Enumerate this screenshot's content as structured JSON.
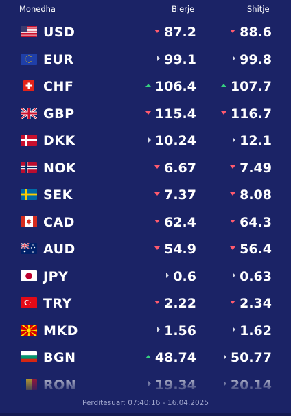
{
  "header": {
    "currency": "Monedha",
    "buy": "Blerje",
    "sell": "Shitje"
  },
  "rates": [
    {
      "code": "USD",
      "flag": "us-flag-icon",
      "buy": "87.2",
      "buy_trend": "down",
      "sell": "88.6",
      "sell_trend": "down"
    },
    {
      "code": "EUR",
      "flag": "eu-flag-icon",
      "buy": "99.1",
      "buy_trend": "flat",
      "sell": "99.8",
      "sell_trend": "flat"
    },
    {
      "code": "CHF",
      "flag": "ch-flag-icon",
      "buy": "106.4",
      "buy_trend": "up",
      "sell": "107.7",
      "sell_trend": "up"
    },
    {
      "code": "GBP",
      "flag": "gb-flag-icon",
      "buy": "115.4",
      "buy_trend": "down",
      "sell": "116.7",
      "sell_trend": "down"
    },
    {
      "code": "DKK",
      "flag": "dk-flag-icon",
      "buy": "10.24",
      "buy_trend": "flat",
      "sell": "12.1",
      "sell_trend": "flat"
    },
    {
      "code": "NOK",
      "flag": "no-flag-icon",
      "buy": "6.67",
      "buy_trend": "down",
      "sell": "7.49",
      "sell_trend": "down"
    },
    {
      "code": "SEK",
      "flag": "se-flag-icon",
      "buy": "7.37",
      "buy_trend": "down",
      "sell": "8.08",
      "sell_trend": "down"
    },
    {
      "code": "CAD",
      "flag": "ca-flag-icon",
      "buy": "62.4",
      "buy_trend": "down",
      "sell": "64.3",
      "sell_trend": "down"
    },
    {
      "code": "AUD",
      "flag": "au-flag-icon",
      "buy": "54.9",
      "buy_trend": "down",
      "sell": "56.4",
      "sell_trend": "down"
    },
    {
      "code": "JPY",
      "flag": "jp-flag-icon",
      "buy": "0.6",
      "buy_trend": "flat",
      "sell": "0.63",
      "sell_trend": "flat"
    },
    {
      "code": "TRY",
      "flag": "tr-flag-icon",
      "buy": "2.22",
      "buy_trend": "down",
      "sell": "2.34",
      "sell_trend": "down"
    },
    {
      "code": "MKD",
      "flag": "mk-flag-icon",
      "buy": "1.56",
      "buy_trend": "flat",
      "sell": "1.62",
      "sell_trend": "flat"
    },
    {
      "code": "BGN",
      "flag": "bg-flag-icon",
      "buy": "48.74",
      "buy_trend": "up",
      "sell": "50.77",
      "sell_trend": "flat"
    },
    {
      "code": "RON",
      "flag": "ro-flag-icon",
      "buy": "19.34",
      "buy_trend": "flat",
      "sell": "20.14",
      "sell_trend": "flat"
    }
  ],
  "footer": {
    "updated": "Përditësuar: 07:40:16 - 16.04.2025"
  },
  "colors": {
    "background": "#1b2366",
    "down": "#ff5a6e",
    "up": "#35d07f",
    "flat": "#d8dbe8"
  }
}
